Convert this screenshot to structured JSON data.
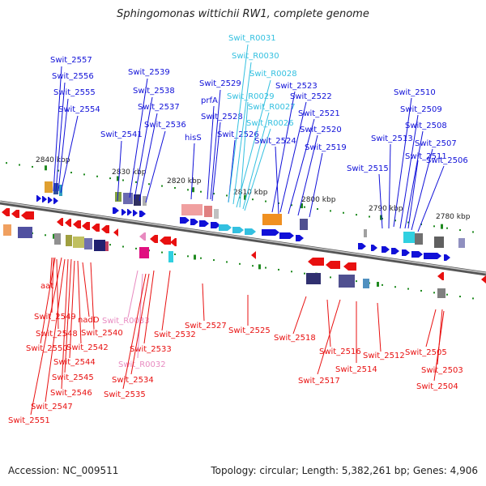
{
  "title": "Sphingomonas wittichii RW1, complete genome",
  "footer": {
    "accession": "Accession: NC_009511",
    "summary": "Topology: circular; Length: 5,382,261 bp; Genes: 4,906"
  },
  "colors": {
    "forward": "#1010d8",
    "reverse": "#e81010",
    "forward_rna": "#33c0e0",
    "reverse_rna": "#e88ac0",
    "backbone": "#888888",
    "scale_dot": "#1f8a1f"
  },
  "positions": [
    {
      "text": "2840 kbp"
    },
    {
      "text": "2830 kbp"
    },
    {
      "text": "2820 kbp"
    },
    {
      "text": "2810 kbp"
    },
    {
      "text": "2800 kbp"
    },
    {
      "text": "2790 kbp"
    },
    {
      "text": "2780 kbp"
    }
  ],
  "forward_labels": [
    {
      "text": "Swit_2557"
    },
    {
      "text": "Swit_2556"
    },
    {
      "text": "Swit_2555"
    },
    {
      "text": "Swit_2554"
    },
    {
      "text": "Swit_2539"
    },
    {
      "text": "Swit_2538"
    },
    {
      "text": "Swit_2537"
    },
    {
      "text": "Swit_2536"
    },
    {
      "text": "Swit_2541"
    },
    {
      "text": "Swit_2529"
    },
    {
      "text": "prfA"
    },
    {
      "text": "Swit_2528"
    },
    {
      "text": "hisS"
    },
    {
      "text": "Swit_2526"
    },
    {
      "text": "Swit_R0031",
      "rna": true
    },
    {
      "text": "Swit_R0030",
      "rna": true
    },
    {
      "text": "Swit_R0028",
      "rna": true
    },
    {
      "text": "Swit_R0029",
      "rna": true
    },
    {
      "text": "Swit_R0027",
      "rna": true
    },
    {
      "text": "Swit_R0026",
      "rna": true
    },
    {
      "text": "Swit_2523"
    },
    {
      "text": "Swit_2522"
    },
    {
      "text": "Swit_2521"
    },
    {
      "text": "Swit_2520"
    },
    {
      "text": "Swit_2524"
    },
    {
      "text": "Swit_2519"
    },
    {
      "text": "Swit_2510"
    },
    {
      "text": "Swit_2509"
    },
    {
      "text": "Swit_2508"
    },
    {
      "text": "Swit_2513"
    },
    {
      "text": "Swit_2507"
    },
    {
      "text": "Swit_2511"
    },
    {
      "text": "Swit_2506"
    },
    {
      "text": "Swit_2515"
    }
  ],
  "reverse_labels": [
    {
      "text": "aat"
    },
    {
      "text": "Swit_2549"
    },
    {
      "text": "Swit_2548"
    },
    {
      "text": "nadD"
    },
    {
      "text": "Swit_R0033",
      "rna": true
    },
    {
      "text": "Swit_2540"
    },
    {
      "text": "Swit_2550"
    },
    {
      "text": "Swit_2542"
    },
    {
      "text": "Swit_2544"
    },
    {
      "text": "Swit_2545"
    },
    {
      "text": "Swit_2546"
    },
    {
      "text": "Swit_2547"
    },
    {
      "text": "Swit_2551"
    },
    {
      "text": "Swit_2532"
    },
    {
      "text": "Swit_2533"
    },
    {
      "text": "Swit_R0032",
      "rna": true
    },
    {
      "text": "Swit_2534"
    },
    {
      "text": "Swit_2535"
    },
    {
      "text": "Swit_2527"
    },
    {
      "text": "Swit_2525"
    },
    {
      "text": "Swit_2518"
    },
    {
      "text": "Swit_2516"
    },
    {
      "text": "Swit_2517"
    },
    {
      "text": "Swit_2514"
    },
    {
      "text": "Swit_2512"
    },
    {
      "text": "Swit_2505"
    },
    {
      "text": "Swit_2503"
    },
    {
      "text": "Swit_2504"
    }
  ]
}
